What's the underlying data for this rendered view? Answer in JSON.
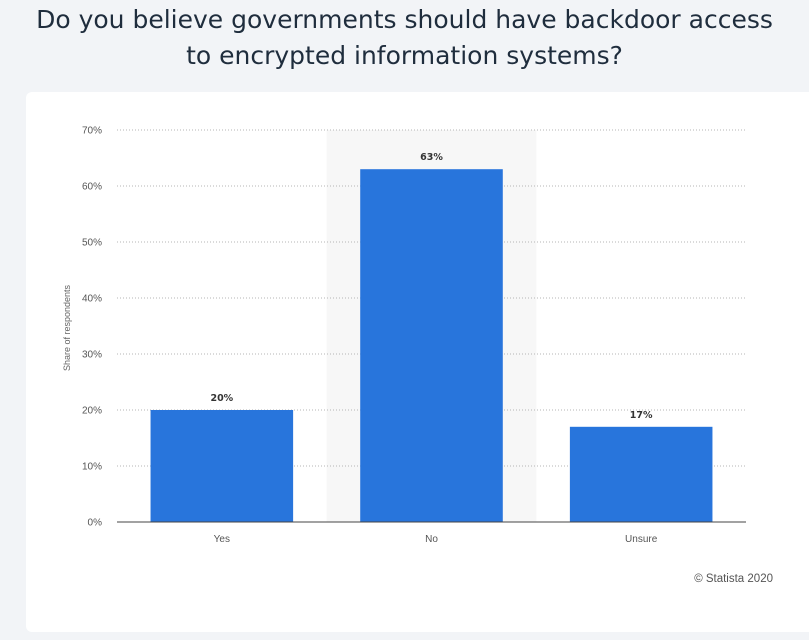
{
  "title_lines": [
    "Do you believe governments should have backdoor access",
    "to encrypted information systems?"
  ],
  "credit": "© Statista 2020",
  "chart_data": {
    "type": "bar",
    "title": "Do you believe governments should have backdoor access to encrypted information systems?",
    "categories": [
      "Yes",
      "No",
      "Unsure"
    ],
    "values": [
      20,
      63,
      17
    ],
    "data_labels": [
      "20%",
      "63%",
      "17%"
    ],
    "ylabel": "Share of respondents",
    "xlabel": "",
    "ylim": [
      0,
      70
    ],
    "yticks": [
      0,
      10,
      20,
      30,
      40,
      50,
      60,
      70
    ],
    "ytick_labels": [
      "0%",
      "10%",
      "20%",
      "30%",
      "40%",
      "50%",
      "60%",
      "70%"
    ],
    "grid": true,
    "highlight_category": "No",
    "bar_color": "#2875dc",
    "grid_color": "#b5b5b5",
    "highlight_band_color": "#f7f7f7"
  }
}
